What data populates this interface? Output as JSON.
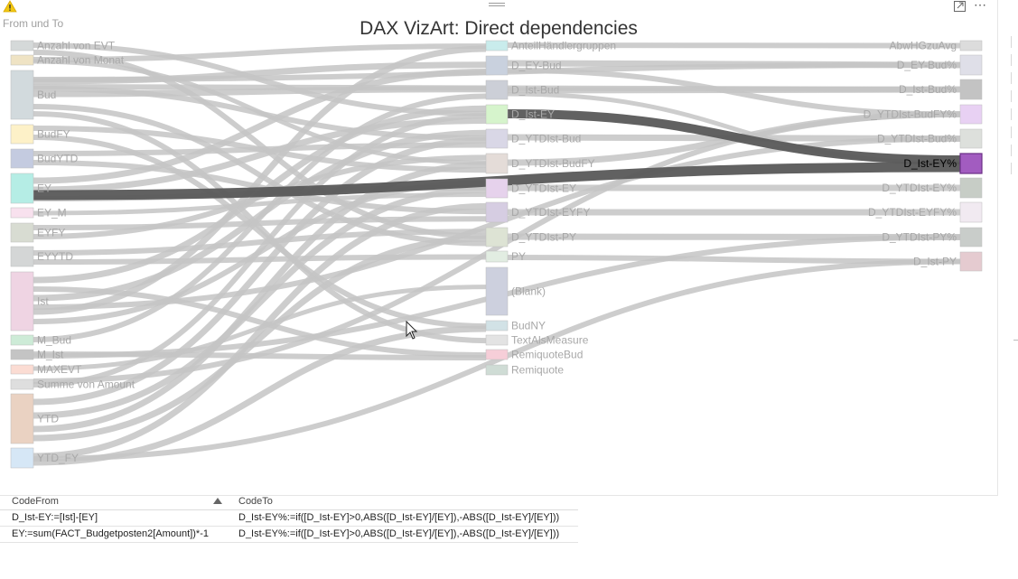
{
  "frame_label": "From und To",
  "title": "DAX VizArt: Direct dependencies",
  "left_nodes": [
    {
      "label": "Anzahl von EVT",
      "color": "#d5d9d9"
    },
    {
      "label": "Anzahl von Monat",
      "color": "#efe3c4"
    },
    {
      "label": "Bud",
      "color": "#d2dadd"
    },
    {
      "label": "BudFY",
      "color": "#fdf1c8"
    },
    {
      "label": "BudYTD",
      "color": "#c4cbe0"
    },
    {
      "label": "EY",
      "color": "#b5ede5"
    },
    {
      "label": "EY_M",
      "color": "#f8e1ee"
    },
    {
      "label": "EYFY",
      "color": "#d8dcd2"
    },
    {
      "label": "EYYTD",
      "color": "#d4d6d6"
    },
    {
      "label": "Ist",
      "color": "#efd4e3"
    },
    {
      "label": "M_Bud",
      "color": "#cdebd7"
    },
    {
      "label": "M_Ist",
      "color": "#c4c4c4"
    },
    {
      "label": "MAXEVT",
      "color": "#fbdcd3"
    },
    {
      "label": "Summe von Amount",
      "color": "#dedede"
    },
    {
      "label": "YTD",
      "color": "#ead2c2"
    },
    {
      "label": "YTD_FY",
      "color": "#d6e7f6"
    }
  ],
  "middle_nodes": [
    {
      "label": "AnteilHändlergruppen",
      "color": "#c9ecec"
    },
    {
      "label": "D_EY-Bud",
      "color": "#c9d1de"
    },
    {
      "label": "D_Ist-Bud",
      "color": "#cccfd7"
    },
    {
      "label": "D_Ist-EY",
      "color": "#d6f4cc"
    },
    {
      "label": "D_YTDIst-Bud",
      "color": "#d9d7e6"
    },
    {
      "label": "D_YTDIst-BudFY",
      "color": "#e4dcd8"
    },
    {
      "label": "D_YTDIst-EY",
      "color": "#e6d2ec"
    },
    {
      "label": "D_YTDIst-EYFY",
      "color": "#d6cde2"
    },
    {
      "label": "D_YTDIst-PY",
      "color": "#dde3d4"
    },
    {
      "label": "PY",
      "color": "#e2ede2"
    },
    {
      "label": "(Blank)",
      "color": "#cdd0de"
    },
    {
      "label": "BudNY",
      "color": "#d2e2e6"
    },
    {
      "label": "TextAlsMeasure",
      "color": "#e3e3e3"
    },
    {
      "label": "RemiquoteBud",
      "color": "#f6ced8"
    },
    {
      "label": "Remiquote",
      "color": "#cfdcd5"
    }
  ],
  "right_nodes": [
    {
      "label": "AbwHGzuAvg",
      "color": "#dcdcdc"
    },
    {
      "label": "D_EY-Bud%",
      "color": "#dfdfe8"
    },
    {
      "label": "D_Ist-Bud%",
      "color": "#c3c3c3"
    },
    {
      "label": "D_YTDIst-BudFY%",
      "color": "#e8d1f3"
    },
    {
      "label": "D_YTDIst-Bud%",
      "color": "#dde0dc"
    },
    {
      "label": "D_Ist-EY%",
      "color": "#a25cc0"
    },
    {
      "label": "D_YTDIst-EY%",
      "color": "#c7cdc6"
    },
    {
      "label": "D_YTDIst-EYFY%",
      "color": "#f1eaf1"
    },
    {
      "label": "D_YTDIst-PY%",
      "color": "#c9cdca"
    },
    {
      "label": "D_Ist-PY",
      "color": "#e5cbd0"
    }
  ],
  "highlighted_node": "D_Ist-EY%",
  "highlight_link_color": "#595959",
  "link_color": "#c4c4c4",
  "table": {
    "headers": {
      "code_from": "CodeFrom",
      "code_to": "CodeTo"
    },
    "sort_icon": "sort-ascending-icon",
    "rows": [
      {
        "code_from": "D_Ist-EY:=[Ist]-[EY]",
        "code_to": "D_Ist-EY%:=if([D_Ist-EY]>0,ABS([D_Ist-EY]/[EY]),-ABS([D_Ist-EY]/[EY]))"
      },
      {
        "code_from": "EY:=sum(FACT_Budgetposten2[Amount])*-1",
        "code_to": "D_Ist-EY%:=if([D_Ist-EY]>0,ABS([D_Ist-EY]/[EY]),-ABS([D_Ist-EY]/[EY]))"
      }
    ]
  },
  "icons": {
    "warning": "warning-icon",
    "focus": "focus-mode-icon",
    "more": "more-options-icon",
    "drag": "drag-handle-icon",
    "cursor": "mouse-pointer-icon"
  }
}
